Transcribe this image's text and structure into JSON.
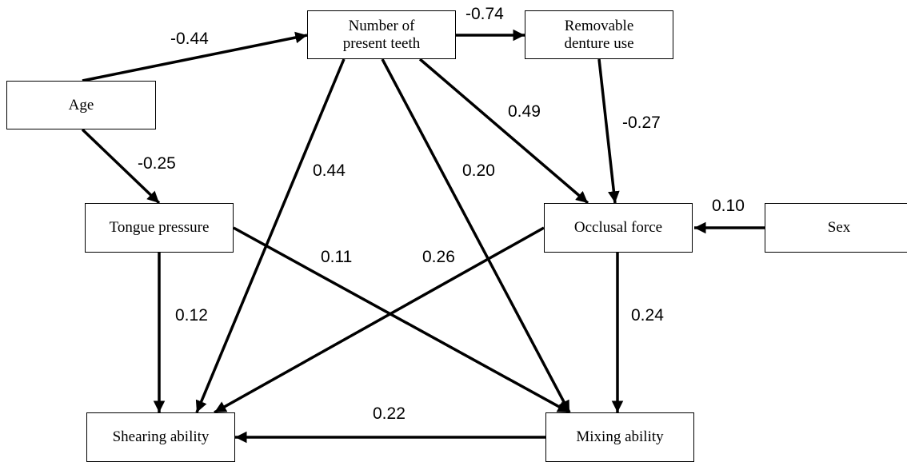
{
  "nodes": {
    "age": {
      "label": "Age"
    },
    "teeth": {
      "line1": "Number of",
      "line2": "present teeth"
    },
    "denture": {
      "line1": "Removable",
      "line2": "denture use"
    },
    "tongue": {
      "label": "Tongue pressure"
    },
    "occlusal": {
      "label": "Occlusal force"
    },
    "sex": {
      "label": "Sex"
    },
    "shearing": {
      "label": "Shearing ability"
    },
    "mixing": {
      "label": "Mixing ability"
    }
  },
  "paths": [
    {
      "from": "Age",
      "to": "Number of present teeth",
      "coefficient": "-0.44"
    },
    {
      "from": "Number of present teeth",
      "to": "Removable denture use",
      "coefficient": "-0.74"
    },
    {
      "from": "Age",
      "to": "Tongue pressure",
      "coefficient": "-0.25"
    },
    {
      "from": "Number of present teeth",
      "to": "Shearing ability",
      "coefficient": "0.44"
    },
    {
      "from": "Number of present teeth",
      "to": "Mixing ability",
      "coefficient": "0.20"
    },
    {
      "from": "Number of present teeth",
      "to": "Occlusal force",
      "coefficient": "0.49"
    },
    {
      "from": "Removable denture use",
      "to": "Occlusal force",
      "coefficient": "-0.27"
    },
    {
      "from": "Sex",
      "to": "Occlusal force",
      "coefficient": "0.10"
    },
    {
      "from": "Tongue pressure",
      "to": "Mixing ability",
      "coefficient": "0.11"
    },
    {
      "from": "Occlusal force",
      "to": "Shearing ability",
      "coefficient": "0.26"
    },
    {
      "from": "Tongue pressure",
      "to": "Shearing ability",
      "coefficient": "0.12"
    },
    {
      "from": "Occlusal force",
      "to": "Mixing ability",
      "coefficient": "0.24"
    },
    {
      "from": "Mixing ability",
      "to": "Shearing ability",
      "coefficient": "0.22"
    }
  ],
  "colors": {
    "stroke": "#000000",
    "background": "#ffffff"
  }
}
